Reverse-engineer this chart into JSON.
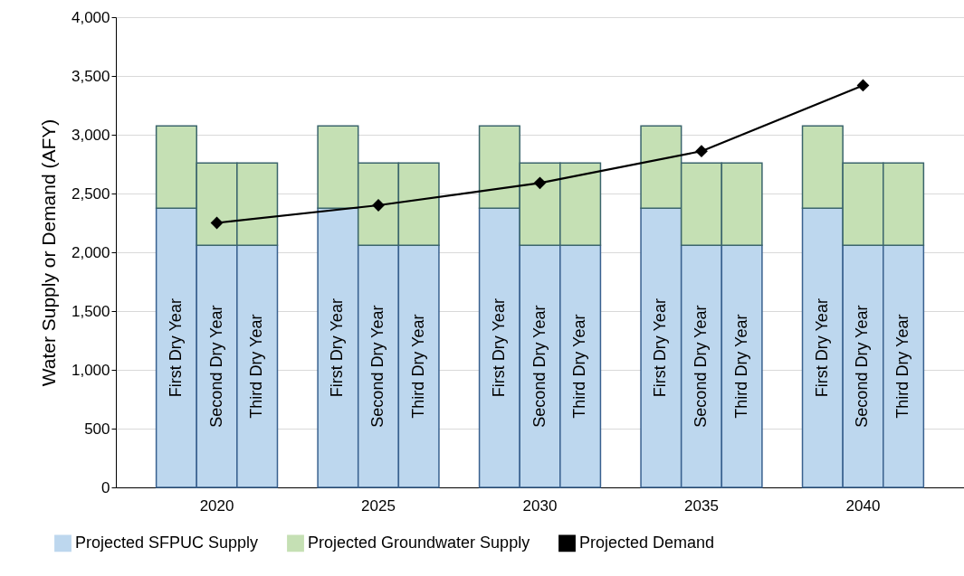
{
  "chart_data": {
    "type": "bar",
    "stacked": true,
    "ylabel": "Water Supply or Demand (AFY)",
    "categories": [
      "First Dry Year",
      "Second Dry Year",
      "Third Dry Year",
      "First Dry Year",
      "Second Dry Year",
      "Third Dry Year",
      "First Dry Year",
      "Second Dry Year",
      "Third Dry Year",
      "First Dry Year",
      "Second Dry Year",
      "Third Dry Year",
      "First Dry Year",
      "Second Dry Year",
      "Third Dry Year"
    ],
    "annotations": [
      "2020",
      "2025",
      "2030",
      "2035",
      "2040"
    ],
    "series": [
      {
        "name": "Projected SFPUC Supply",
        "color": "#bdd7ee",
        "values": [
          2375,
          2060,
          2060,
          2375,
          2060,
          2060,
          2375,
          2060,
          2060,
          2375,
          2060,
          2060,
          2375,
          2060,
          2060
        ]
      },
      {
        "name": "Projected Groundwater Supply",
        "color": "#c5e0b4",
        "values": [
          700,
          700,
          700,
          700,
          700,
          700,
          700,
          700,
          700,
          700,
          700,
          700,
          700,
          700,
          700
        ]
      },
      {
        "name": "Projected Demand",
        "type": "line",
        "color": "#000000",
        "values": [
          null,
          2250,
          null,
          null,
          2400,
          null,
          null,
          2590,
          null,
          null,
          2860,
          null,
          null,
          3420,
          null
        ]
      }
    ],
    "marker": "diamond",
    "line_style": "solid",
    "ylim": [
      0,
      4000
    ],
    "yticks": [
      0,
      500,
      {
        "value": 1000,
        "label": "1,000"
      },
      {
        "value": 1500,
        "label": "1,500"
      },
      {
        "value": 2000,
        "label": "2,000"
      },
      {
        "value": 2500,
        "label": "2,500"
      },
      {
        "value": 3000,
        "label": "3,000"
      },
      {
        "value": 3500,
        "label": "3,500"
      },
      {
        "value": 4000,
        "label": "4,000"
      }
    ],
    "grid": "y",
    "legend": "bottom"
  }
}
